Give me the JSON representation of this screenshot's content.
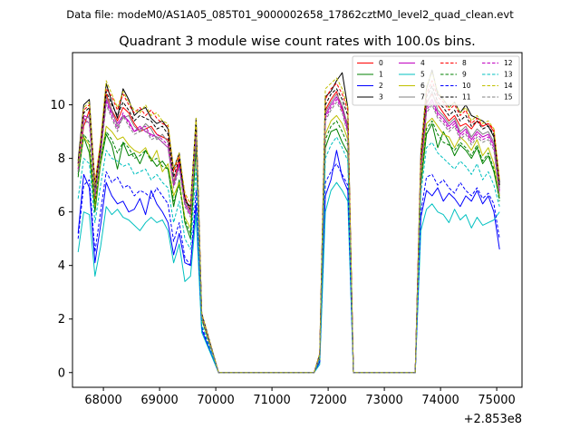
{
  "chart_data": {
    "type": "line",
    "suptitle": "Data file: modeM0/AS1A05_085T01_9000002658_17862cztM0_level2_quad_clean.evt",
    "title": "Quadrant 3 module wise count rates with 100.0s bins.",
    "xlabel": "",
    "ylabel": "",
    "x_offset_label": "+2.853e8",
    "xlim": [
      67450,
      75450
    ],
    "ylim": [
      -0.55,
      11.95
    ],
    "x_ticks": [
      68000,
      69000,
      70000,
      71000,
      72000,
      73000,
      74000,
      75000
    ],
    "x_tick_labels": [
      "68000",
      "69000",
      "70000",
      "71000",
      "72000",
      "73000",
      "74000",
      "75000"
    ],
    "y_ticks": [
      0,
      2,
      4,
      6,
      8,
      10
    ],
    "y_tick_labels": [
      "0",
      "2",
      "4",
      "6",
      "8",
      "10"
    ],
    "legend_position": "upper-right",
    "legend_columns": 4,
    "segments": [
      {
        "name": "good-1",
        "start": 67550,
        "step": 100,
        "count": 23
      },
      {
        "name": "gap-1",
        "start": 70050,
        "end": 71750
      },
      {
        "name": "good-2",
        "start": 71850,
        "step": 100,
        "count": 6
      },
      {
        "name": "gap-2",
        "start": 72450,
        "end": 73550
      },
      {
        "name": "good-3",
        "start": 73650,
        "step": 100,
        "count": 15
      }
    ],
    "series": [
      {
        "name": "0",
        "color": "#ff0000",
        "dash": "solid",
        "seg1": [
          7.6,
          9.2,
          9.8,
          6.5,
          8.4,
          10.4,
          9.8,
          9.4,
          9.9,
          9.7,
          9.3,
          9.0,
          9.1,
          9.2,
          8.9,
          8.8,
          8.7,
          7.1,
          7.9,
          6.6,
          6.0,
          9.2,
          2.1
        ],
        "seg2": [
          0.6,
          9.8,
          10.2,
          10.5,
          9.8,
          9.3
        ],
        "seg3": [
          7.8,
          10.1,
          10.4,
          10.0,
          9.7,
          9.4,
          9.6,
          9.2,
          9.3,
          9.1,
          9.4,
          9.2,
          9.3,
          9.0,
          7.0
        ]
      },
      {
        "name": "1",
        "color": "#008000",
        "dash": "solid",
        "seg1": [
          7.4,
          8.8,
          8.2,
          6.0,
          7.8,
          8.9,
          8.5,
          7.6,
          8.6,
          8.1,
          8.2,
          7.8,
          8.3,
          8.0,
          7.7,
          7.9,
          7.6,
          6.2,
          7.2,
          5.6,
          5.0,
          8.4,
          2.0
        ],
        "seg2": [
          0.5,
          8.4,
          9.0,
          9.1,
          8.6,
          8.2
        ],
        "seg3": [
          7.0,
          8.9,
          9.3,
          8.4,
          9.0,
          8.6,
          8.1,
          8.5,
          8.3,
          8.0,
          8.4,
          7.8,
          8.1,
          7.5,
          6.5
        ]
      },
      {
        "name": "2",
        "color": "#0000ff",
        "dash": "solid",
        "seg1": [
          5.2,
          7.4,
          6.9,
          4.1,
          5.5,
          7.1,
          6.6,
          6.3,
          6.4,
          6.0,
          6.1,
          6.5,
          5.9,
          6.8,
          6.3,
          6.0,
          5.6,
          4.4,
          5.2,
          4.1,
          4.0,
          6.3,
          1.6
        ],
        "seg2": [
          0.4,
          6.6,
          7.2,
          8.3,
          7.3,
          6.8
        ],
        "seg3": [
          5.8,
          6.8,
          6.6,
          6.9,
          6.4,
          6.7,
          6.5,
          6.2,
          6.6,
          6.4,
          6.8,
          6.3,
          6.6,
          6.0,
          4.6
        ]
      },
      {
        "name": "3",
        "color": "#000000",
        "dash": "solid",
        "seg1": [
          7.9,
          10.0,
          10.2,
          7.0,
          8.5,
          10.8,
          10.1,
          9.5,
          10.6,
          10.2,
          9.6,
          9.8,
          9.9,
          9.5,
          9.3,
          9.4,
          9.1,
          7.6,
          8.2,
          6.4,
          6.2,
          9.5,
          2.2
        ],
        "seg2": [
          0.7,
          10.3,
          10.5,
          10.9,
          11.2,
          9.9
        ],
        "seg3": [
          8.2,
          10.6,
          11.3,
          10.4,
          10.2,
          9.9,
          10.1,
          9.7,
          10.0,
          9.6,
          9.5,
          9.4,
          9.2,
          8.8,
          7.1
        ]
      },
      {
        "name": "4",
        "color": "#c000c0",
        "dash": "solid",
        "seg1": [
          7.5,
          9.6,
          9.5,
          6.8,
          8.2,
          10.2,
          9.7,
          9.3,
          9.6,
          9.4,
          9.0,
          9.2,
          9.0,
          8.9,
          8.8,
          8.6,
          8.4,
          7.0,
          7.8,
          6.3,
          5.9,
          9.0,
          2.1
        ],
        "seg2": [
          0.6,
          9.6,
          10.0,
          10.3,
          9.9,
          9.1
        ],
        "seg3": [
          7.6,
          9.9,
          10.2,
          9.7,
          9.5,
          9.2,
          9.4,
          8.9,
          9.1,
          8.7,
          9.0,
          8.8,
          8.9,
          8.5,
          6.8
        ]
      },
      {
        "name": "5",
        "color": "#00c0c0",
        "dash": "solid",
        "seg1": [
          4.5,
          6.0,
          5.9,
          3.6,
          4.7,
          6.2,
          5.9,
          6.1,
          5.8,
          5.7,
          5.5,
          5.3,
          5.6,
          5.8,
          5.6,
          5.7,
          5.3,
          4.1,
          4.8,
          3.4,
          3.6,
          5.9,
          1.5
        ],
        "seg2": [
          0.3,
          6.0,
          6.8,
          7.1,
          6.8,
          6.4
        ],
        "seg3": [
          5.3,
          6.1,
          6.3,
          6.0,
          5.9,
          5.6,
          6.1,
          5.7,
          5.9,
          5.4,
          5.8,
          5.5,
          5.6,
          5.7,
          6.0
        ]
      },
      {
        "name": "6",
        "color": "#c0c000",
        "dash": "solid",
        "seg1": [
          7.6,
          8.8,
          8.5,
          6.2,
          7.9,
          9.2,
          9.0,
          8.7,
          8.8,
          8.5,
          8.3,
          8.2,
          8.4,
          7.9,
          8.3,
          7.5,
          7.8,
          6.6,
          7.1,
          5.8,
          5.4,
          8.7,
          2.0
        ],
        "seg2": [
          0.5,
          8.9,
          9.4,
          9.6,
          9.3,
          8.7
        ],
        "seg3": [
          7.2,
          9.3,
          9.5,
          9.2,
          8.9,
          8.8,
          8.4,
          8.8,
          8.6,
          8.3,
          8.7,
          8.1,
          8.4,
          7.8,
          6.6
        ]
      },
      {
        "name": "7",
        "color": "#808080",
        "dash": "solid",
        "seg1": [
          7.7,
          9.4,
          9.6,
          6.7,
          8.3,
          10.3,
          9.8,
          9.2,
          9.5,
          9.6,
          9.2,
          9.0,
          9.3,
          9.1,
          8.7,
          8.9,
          8.6,
          7.1,
          7.7,
          6.4,
          6.0,
          9.1,
          2.1
        ],
        "seg2": [
          0.6,
          9.7,
          10.1,
          10.4,
          10.0,
          9.2
        ],
        "seg3": [
          7.6,
          10.0,
          10.5,
          9.8,
          9.6,
          9.3,
          9.5,
          9.0,
          9.2,
          8.8,
          9.1,
          8.9,
          9.0,
          8.6,
          6.9
        ]
      },
      {
        "name": "8",
        "color": "#ff0000",
        "dash": "dashed",
        "seg1": [
          7.8,
          9.8,
          10.0,
          7.1,
          8.6,
          10.6,
          10.3,
          9.8,
          10.4,
          10.0,
          9.7,
          9.9,
          9.6,
          9.8,
          9.5,
          9.3,
          9.2,
          7.5,
          8.1,
          6.7,
          6.3,
          9.4,
          2.2
        ],
        "seg2": [
          0.7,
          10.2,
          10.6,
          10.8,
          10.4,
          9.8
        ],
        "seg3": [
          8.0,
          10.4,
          10.9,
          10.3,
          10.1,
          9.8,
          10.0,
          9.6,
          9.8,
          9.3,
          9.5,
          9.2,
          9.3,
          9.1,
          7.2
        ]
      },
      {
        "name": "9",
        "color": "#008000",
        "dash": "dashed",
        "seg1": [
          7.3,
          8.9,
          8.6,
          6.3,
          8.0,
          9.0,
          8.7,
          8.2,
          8.6,
          8.4,
          8.0,
          8.1,
          8.3,
          7.9,
          8.0,
          7.7,
          7.6,
          6.4,
          7.0,
          5.7,
          5.2,
          8.5,
          2.0
        ],
        "seg2": [
          0.5,
          8.7,
          9.2,
          9.4,
          9.0,
          8.5
        ],
        "seg3": [
          7.1,
          9.1,
          9.4,
          8.9,
          8.6,
          8.5,
          8.3,
          8.6,
          8.4,
          8.1,
          8.5,
          7.9,
          8.2,
          7.6,
          6.4
        ]
      },
      {
        "name": "10",
        "color": "#0000ff",
        "dash": "dashed",
        "seg1": [
          5.0,
          7.0,
          7.2,
          4.5,
          6.0,
          7.5,
          7.1,
          7.3,
          6.9,
          7.0,
          6.6,
          6.8,
          6.7,
          6.5,
          6.9,
          6.6,
          6.3,
          4.9,
          5.6,
          4.3,
          4.0,
          6.8,
          1.7
        ],
        "seg2": [
          0.4,
          7.1,
          7.5,
          7.8,
          7.4,
          7.0
        ],
        "seg3": [
          6.0,
          7.3,
          7.4,
          7.0,
          7.2,
          6.9,
          6.7,
          7.1,
          6.8,
          6.6,
          6.9,
          6.5,
          6.7,
          6.3,
          5.0
        ]
      },
      {
        "name": "11",
        "color": "#000000",
        "dash": "dashed",
        "seg1": [
          7.8,
          9.7,
          9.9,
          6.9,
          8.4,
          10.5,
          10.0,
          9.6,
          10.1,
          9.8,
          9.4,
          9.6,
          9.5,
          9.4,
          9.1,
          9.2,
          8.9,
          7.3,
          8.0,
          6.5,
          6.1,
          9.3,
          2.2
        ],
        "seg2": [
          0.6,
          10.0,
          10.4,
          10.6,
          10.2,
          9.6
        ],
        "seg3": [
          7.9,
          10.3,
          10.7,
          10.1,
          9.9,
          9.6,
          9.8,
          9.4,
          9.6,
          9.2,
          9.4,
          9.1,
          9.2,
          8.9,
          7.0
        ]
      },
      {
        "name": "12",
        "color": "#c000c0",
        "dash": "dashed",
        "seg1": [
          7.6,
          9.5,
          9.3,
          6.6,
          8.2,
          10.1,
          9.6,
          9.1,
          9.7,
          9.3,
          9.0,
          9.1,
          9.2,
          8.8,
          8.9,
          8.7,
          8.5,
          7.0,
          7.7,
          6.3,
          5.9,
          8.9,
          2.1
        ],
        "seg2": [
          0.6,
          9.5,
          9.9,
          10.2,
          9.8,
          9.0
        ],
        "seg3": [
          7.5,
          9.8,
          10.1,
          9.6,
          9.4,
          9.1,
          9.3,
          8.8,
          9.0,
          8.6,
          8.9,
          8.7,
          8.8,
          8.4,
          6.7
        ]
      },
      {
        "name": "13",
        "color": "#00c0c0",
        "dash": "dashed",
        "seg1": [
          6.5,
          8.0,
          7.8,
          5.6,
          7.0,
          8.3,
          8.0,
          7.9,
          7.7,
          7.8,
          7.4,
          7.5,
          7.6,
          7.2,
          7.4,
          7.1,
          6.9,
          5.6,
          6.4,
          5.0,
          4.6,
          7.6,
          1.8
        ],
        "seg2": [
          0.5,
          8.0,
          8.5,
          8.8,
          8.4,
          7.9
        ],
        "seg3": [
          6.7,
          8.4,
          8.6,
          8.2,
          8.0,
          7.8,
          7.6,
          7.9,
          7.7,
          7.4,
          7.8,
          7.2,
          7.5,
          7.0,
          6.2
        ]
      },
      {
        "name": "14",
        "color": "#c0c000",
        "dash": "dashed",
        "seg1": [
          7.7,
          9.9,
          10.1,
          7.0,
          8.7,
          10.9,
          10.4,
          9.9,
          10.5,
          10.1,
          9.8,
          9.7,
          10.0,
          9.6,
          9.7,
          9.4,
          9.3,
          7.6,
          8.2,
          6.7,
          6.3,
          9.5,
          2.2
        ],
        "seg2": [
          0.7,
          10.6,
          10.8,
          11.0,
          10.6,
          9.9
        ],
        "seg3": [
          8.1,
          10.7,
          11.2,
          10.5,
          10.2,
          9.9,
          10.1,
          9.7,
          9.9,
          9.4,
          9.6,
          9.3,
          9.4,
          9.1,
          7.2
        ]
      },
      {
        "name": "15",
        "color": "#808080",
        "dash": "dashed",
        "seg1": [
          7.5,
          9.3,
          9.4,
          6.6,
          8.1,
          10.0,
          9.5,
          9.0,
          9.6,
          9.2,
          8.9,
          9.0,
          9.1,
          8.7,
          8.8,
          8.6,
          8.4,
          6.9,
          7.6,
          6.2,
          5.8,
          8.8,
          2.1
        ],
        "seg2": [
          0.6,
          9.4,
          9.8,
          10.1,
          9.7,
          8.9
        ],
        "seg3": [
          7.4,
          9.7,
          10.0,
          9.5,
          9.3,
          9.0,
          9.2,
          8.7,
          8.9,
          8.5,
          8.8,
          8.6,
          8.7,
          8.3,
          6.6
        ]
      }
    ]
  }
}
